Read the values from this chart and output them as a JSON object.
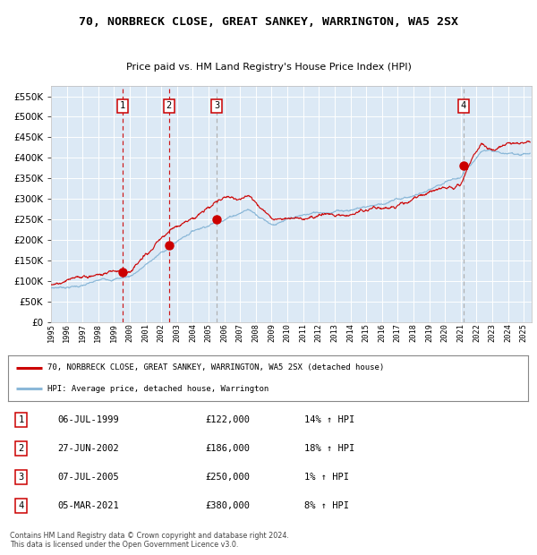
{
  "title": "70, NORBRECK CLOSE, GREAT SANKEY, WARRINGTON, WA5 2SX",
  "subtitle": "Price paid vs. HM Land Registry's House Price Index (HPI)",
  "xlim_start": 1995,
  "xlim_end": 2025.5,
  "ylim": [
    0,
    575000
  ],
  "yticks": [
    0,
    50000,
    100000,
    150000,
    200000,
    250000,
    300000,
    350000,
    400000,
    450000,
    500000,
    550000
  ],
  "plot_bg_color": "#dce9f5",
  "red_line_color": "#cc0000",
  "blue_line_color": "#8bb8d8",
  "sale_points": [
    {
      "year": 1999.52,
      "price": 122000,
      "label": "1"
    },
    {
      "year": 2002.49,
      "price": 186000,
      "label": "2"
    },
    {
      "year": 2005.51,
      "price": 250000,
      "label": "3"
    },
    {
      "year": 2021.17,
      "price": 380000,
      "label": "4"
    }
  ],
  "sale_vlines_dashed_red": [
    1999.52,
    2002.49
  ],
  "sale_vlines_dashed_gray": [
    2005.51,
    2021.17
  ],
  "legend_entries": [
    {
      "label": "70, NORBRECK CLOSE, GREAT SANKEY, WARRINGTON, WA5 2SX (detached house)",
      "color": "#cc0000"
    },
    {
      "label": "HPI: Average price, detached house, Warrington",
      "color": "#8bb8d8"
    }
  ],
  "table_rows": [
    {
      "num": "1",
      "date": "06-JUL-1999",
      "price": "£122,000",
      "hpi": "14% ↑ HPI"
    },
    {
      "num": "2",
      "date": "27-JUN-2002",
      "price": "£186,000",
      "hpi": "18% ↑ HPI"
    },
    {
      "num": "3",
      "date": "07-JUL-2005",
      "price": "£250,000",
      "hpi": "1% ↑ HPI"
    },
    {
      "num": "4",
      "date": "05-MAR-2021",
      "price": "£380,000",
      "hpi": "8% ↑ HPI"
    }
  ],
  "footer": "Contains HM Land Registry data © Crown copyright and database right 2024.\nThis data is licensed under the Open Government Licence v3.0."
}
